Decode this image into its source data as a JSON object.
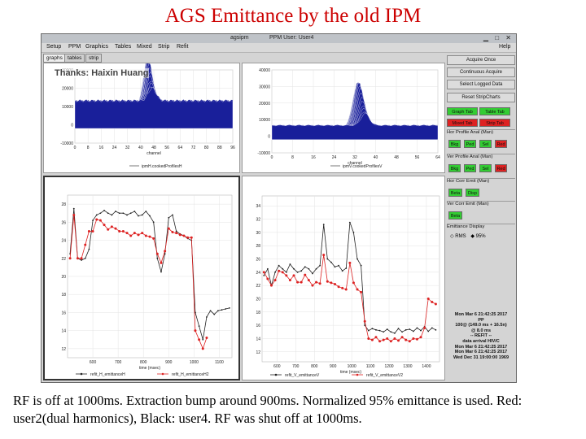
{
  "slide": {
    "title": "AGS Emittance by the old IPM",
    "caption": "RF is off at 1000ms. Extraction bump around 900ms. Normalized 95% emittance is used. Red: user2(dual harmonics), Black: user4. RF was shut off at 1000ms.",
    "thanks": "Thanks: Haixin Huang"
  },
  "window": {
    "app_name": "agsipm",
    "user_title": "PPM User: User4",
    "menu": [
      "Setup",
      "PPM",
      "Graphics",
      "Tables",
      "Mixed",
      "Strip",
      "Refit"
    ],
    "help": "Help",
    "tabs": [
      "graphs",
      "tables",
      "strip"
    ]
  },
  "side": {
    "buttons": [
      "Acquire Once",
      "Continuous Acquire",
      "Select Logged Data",
      "Reset StripCharts"
    ],
    "tab_buttons": [
      {
        "label": "Graph Tab",
        "color": "#33cc33"
      },
      {
        "label": "Table Tab",
        "color": "#33cc33"
      },
      {
        "label": "Mixed Tab",
        "color": "#dd2222"
      },
      {
        "label": "Strip Tab",
        "color": "#dd2222"
      }
    ],
    "groups": [
      {
        "title": "Hor Profile Anal (Man)",
        "buttons": [
          {
            "label": "Bkg",
            "color": "#33cc33"
          },
          {
            "label": "Ped",
            "color": "#33cc33"
          },
          {
            "label": "Sel",
            "color": "#33cc33"
          },
          {
            "label": "Red",
            "color": "#dd2222"
          }
        ]
      },
      {
        "title": "Ver Profile Anal (Man)",
        "buttons": [
          {
            "label": "Bkg",
            "color": "#33cc33"
          },
          {
            "label": "Ped",
            "color": "#33cc33"
          },
          {
            "label": "Sel",
            "color": "#33cc33"
          },
          {
            "label": "Red",
            "color": "#dd2222"
          }
        ]
      },
      {
        "title": "Hor Corr Emit (Man)",
        "buttons": [
          {
            "label": "Beta",
            "color": "#33cc33"
          },
          {
            "label": "Disp",
            "color": "#33cc33"
          }
        ]
      },
      {
        "title": "Ver Corr Emit (Man)",
        "buttons": [
          {
            "label": "Beta",
            "color": "#33cc33"
          }
        ]
      }
    ],
    "emit_display": {
      "title": "Emittance Display",
      "options": [
        "RMS",
        "95%"
      ]
    },
    "status_lines": [
      "Mon Mar  6 21:42:25 2017",
      "PP",
      "100@ (149.0 ms + 16.5n)",
      "@  8.0 ms",
      "-- REFIT --",
      "data arrival HIV/C",
      "Mon Mar  6 21:42:25 2017",
      "Mon Mar  6 21:42:25 2017",
      "Wed Dec 31 19:00:00 1969"
    ]
  },
  "chart_data": [
    {
      "type": "area",
      "title": "",
      "xlabel": "channel",
      "ylabel": "",
      "xlim": [
        0,
        96
      ],
      "ylim": [
        -10000,
        30000
      ],
      "xticks": [
        0,
        8,
        16,
        24,
        32,
        40,
        48,
        56,
        64,
        72,
        80,
        88,
        96
      ],
      "yticks": [
        -10000,
        0,
        10000,
        20000,
        30000
      ],
      "legend": "ipmH.cookedProfilesH",
      "peak_channel": 44,
      "peak_value": 27000,
      "baseline": 6000,
      "trace_count": 24
    },
    {
      "type": "area",
      "title": "",
      "xlabel": "channel",
      "ylabel": "",
      "xlim": [
        0,
        64
      ],
      "ylim": [
        -10000,
        40000
      ],
      "xticks": [
        0,
        8,
        16,
        24,
        32,
        40,
        48,
        56,
        64
      ],
      "yticks": [
        -10000,
        0,
        10000,
        20000,
        30000,
        40000
      ],
      "legend": "ipmV.cookedProfilesV",
      "peak_channel": 33,
      "peak_value": 28000,
      "baseline": 3000,
      "trace_count": 24
    },
    {
      "type": "line",
      "title": "",
      "xlabel": "time (msec)",
      "ylabel": "",
      "xlim": [
        500,
        1150
      ],
      "ylim": [
        11,
        29
      ],
      "xticks": [
        600,
        700,
        800,
        900,
        1000,
        1100
      ],
      "yticks": [
        12,
        14,
        16,
        18,
        20,
        22,
        24,
        26,
        28
      ],
      "series": [
        {
          "name": "refit_H_emittanceH",
          "color": "#222222",
          "x": [
            510,
            525,
            540,
            555,
            570,
            585,
            600,
            615,
            630,
            645,
            660,
            675,
            690,
            705,
            720,
            735,
            750,
            765,
            780,
            795,
            810,
            825,
            840,
            855,
            870,
            885,
            900,
            915,
            930,
            945,
            960,
            975,
            990,
            1005,
            1020,
            1035,
            1050,
            1065,
            1080,
            1095,
            1110,
            1125,
            1140
          ],
          "y": [
            22.5,
            27.5,
            22.0,
            21.8,
            22.0,
            23.0,
            26.2,
            26.8,
            27.0,
            27.3,
            27.0,
            26.8,
            27.2,
            27.0,
            27.0,
            26.8,
            27.0,
            27.2,
            26.7,
            26.8,
            27.2,
            26.7,
            26.0,
            22.0,
            20.5,
            22.5,
            26.5,
            26.8,
            25.0,
            24.7,
            24.5,
            24.2,
            24.0,
            16.0,
            14.5,
            13.0,
            15.5,
            16.2,
            15.8,
            16.2,
            16.3,
            16.4,
            16.5
          ]
        },
        {
          "name": "refit_H_emittanceH2",
          "color": "#dd2222",
          "x": [
            510,
            525,
            540,
            555,
            570,
            585,
            600,
            615,
            630,
            645,
            660,
            675,
            690,
            705,
            720,
            735,
            750,
            765,
            780,
            795,
            810,
            825,
            840,
            855,
            870,
            885,
            900,
            915,
            930,
            945,
            960,
            975,
            990,
            1005,
            1020,
            1035,
            1050
          ],
          "y": [
            22.0,
            26.8,
            22.0,
            22.0,
            23.5,
            25.0,
            25.0,
            26.3,
            26.2,
            25.7,
            25.2,
            25.5,
            25.3,
            25.0,
            25.0,
            24.8,
            24.5,
            24.8,
            24.6,
            24.8,
            24.5,
            24.4,
            24.2,
            22.5,
            21.5,
            22.8,
            25.3,
            24.9,
            24.8,
            24.6,
            24.5,
            24.3,
            24.3,
            14.0,
            13.0,
            12.0,
            13.2
          ]
        }
      ]
    },
    {
      "type": "line",
      "title": "",
      "xlabel": "time (msec)",
      "ylabel": "",
      "xlim": [
        520,
        1470
      ],
      "ylim": [
        10.5,
        35.5
      ],
      "xticks": [
        600,
        700,
        800,
        900,
        1000,
        1100,
        1200,
        1300,
        1400
      ],
      "yticks": [
        12,
        14,
        16,
        18,
        20,
        22,
        24,
        26,
        28,
        30,
        32,
        34
      ],
      "series": [
        {
          "name": "refit_V_emittanceV",
          "color": "#222222",
          "x": [
            530,
            550,
            570,
            590,
            610,
            630,
            650,
            670,
            690,
            710,
            730,
            750,
            770,
            790,
            810,
            830,
            850,
            870,
            890,
            910,
            930,
            950,
            970,
            990,
            1010,
            1030,
            1050,
            1070,
            1090,
            1110,
            1130,
            1150,
            1170,
            1190,
            1210,
            1230,
            1250,
            1270,
            1290,
            1310,
            1330,
            1350,
            1370,
            1390,
            1410,
            1430,
            1450
          ],
          "y": [
            23.5,
            24.5,
            22.0,
            24.0,
            25.0,
            24.5,
            24.0,
            25.2,
            24.5,
            24.0,
            24.2,
            24.8,
            24.5,
            23.8,
            24.5,
            25.0,
            31.2,
            26.0,
            25.5,
            24.8,
            25.0,
            24.2,
            24.6,
            31.5,
            30.0,
            26.0,
            25.0,
            16.0,
            15.2,
            15.5,
            15.3,
            15.2,
            15.0,
            15.4,
            15.0,
            14.8,
            15.5,
            15.0,
            15.3,
            15.4,
            15.1,
            15.6,
            15.2,
            15.8,
            15.1,
            15.6,
            15.3
          ]
        },
        {
          "name": "refit_V_emittanceV2",
          "color": "#dd2222",
          "x": [
            530,
            550,
            570,
            590,
            610,
            630,
            650,
            670,
            690,
            710,
            730,
            750,
            770,
            790,
            810,
            830,
            850,
            870,
            890,
            910,
            930,
            950,
            970,
            990,
            1010,
            1030,
            1050,
            1070,
            1090,
            1110,
            1130,
            1150,
            1170,
            1190,
            1210,
            1230,
            1250,
            1270,
            1290,
            1310,
            1330,
            1350,
            1370,
            1390,
            1410,
            1430,
            1450
          ],
          "y": [
            24.0,
            23.0,
            22.0,
            22.8,
            24.2,
            24.0,
            23.5,
            22.8,
            23.5,
            22.5,
            22.5,
            23.6,
            22.8,
            22.0,
            22.5,
            22.3,
            26.6,
            22.6,
            22.4,
            22.2,
            21.8,
            21.6,
            21.4,
            25.4,
            22.4,
            21.4,
            21.0,
            16.6,
            14.0,
            13.8,
            14.2,
            13.6,
            13.8,
            14.0,
            13.6,
            14.0,
            13.7,
            14.2,
            13.8,
            13.6,
            14.0,
            13.9,
            14.2,
            15.6,
            20.0,
            19.5,
            19.2
          ]
        }
      ]
    }
  ]
}
